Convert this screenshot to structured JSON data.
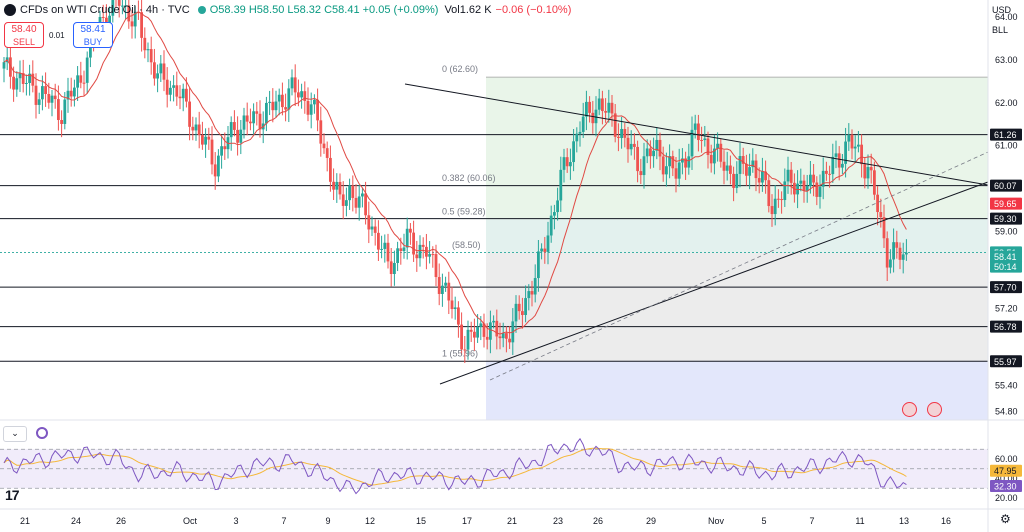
{
  "header": {
    "title": "CFDs on WTI Crude Oil · 4h · TVC",
    "ohlc": "O58.39 H58.50 L58.32 C58.41 +0.05 (+0.09%)",
    "volume": "Vol1.62 K",
    "vol_change": "−0.06 (−0.10%)"
  },
  "trade": {
    "sell_price": "58.40",
    "sell_label": "SELL",
    "buy_price": "58.41",
    "buy_label": "BUY",
    "spread": "0.01"
  },
  "currency": "USD",
  "unit": "BLL",
  "colors": {
    "up": "#26a69a",
    "down": "#ef5350",
    "ma": "#e04a44",
    "rsi": "#7e57c2",
    "rsi_ma": "#f5b83a"
  },
  "fib_labels": [
    {
      "text": "0 (62.60)",
      "price": 62.6
    },
    {
      "text": "0.382 (60.06)",
      "price": 60.06
    },
    {
      "text": "0.5 (59.28)",
      "price": 59.28
    },
    {
      "text": "(58.50)",
      "price": 58.5
    },
    {
      "text": "1 (55.96)",
      "price": 55.96
    }
  ],
  "price_axis": [
    "64.00",
    "63.00",
    "62.00",
    "61.00",
    "59.00",
    "57.20",
    "56.80",
    "55.40",
    "54.80"
  ],
  "price_axis_values": [
    64.0,
    63.0,
    62.0,
    61.0,
    59.0,
    57.2,
    56.8,
    55.4,
    54.8
  ],
  "level_badges": [
    {
      "text": "61.26",
      "price": 61.26,
      "style": "dark"
    },
    {
      "text": "60.07",
      "price": 60.07,
      "style": "dark"
    },
    {
      "text": "59.65",
      "price": 59.65,
      "style": "red"
    },
    {
      "text": "59.30",
      "price": 59.3,
      "style": "dark"
    },
    {
      "text": "58.51",
      "price": 58.51,
      "style": "green"
    },
    {
      "text": "58.41",
      "price": 58.41,
      "style": "green"
    },
    {
      "text": "50:14",
      "price": 58.18,
      "style": "green"
    },
    {
      "text": "57.70",
      "price": 57.7,
      "style": "dark"
    },
    {
      "text": "56.78",
      "price": 56.78,
      "style": "dark"
    },
    {
      "text": "55.97",
      "price": 55.97,
      "style": "dark"
    }
  ],
  "rsi_axis": [
    "60.00",
    "40.00",
    "20.00"
  ],
  "rsi_badges": [
    {
      "text": "47.95",
      "value": 47.95,
      "style": "yellow"
    },
    {
      "text": "32.30",
      "value": 32.3,
      "style": "purple"
    }
  ],
  "time_axis": [
    "21",
    "24",
    "26",
    "Oct",
    "3",
    "7",
    "9",
    "12",
    "15",
    "17",
    "21",
    "23",
    "26",
    "29",
    "Nov",
    "5",
    "7",
    "11",
    "13",
    "16"
  ],
  "chart_data": {
    "type": "candlestick",
    "timeframe": "4h",
    "y_range": [
      54.6,
      64.4
    ],
    "levels": [
      61.26,
      60.07,
      59.3,
      57.7,
      56.78,
      55.97
    ],
    "close_path": [
      {
        "x": 0,
        "y": 62.8
      },
      {
        "x": 4,
        "y": 62.2
      },
      {
        "x": 6,
        "y": 61.8
      },
      {
        "x": 8,
        "y": 62.6
      },
      {
        "x": 10,
        "y": 63.9
      },
      {
        "x": 12,
        "y": 64.4
      },
      {
        "x": 14,
        "y": 63.8
      },
      {
        "x": 16,
        "y": 62.6
      },
      {
        "x": 18,
        "y": 62.3
      },
      {
        "x": 20,
        "y": 61.4
      },
      {
        "x": 22,
        "y": 60.6
      },
      {
        "x": 24,
        "y": 61.4
      },
      {
        "x": 26,
        "y": 61.6
      },
      {
        "x": 28,
        "y": 61.9
      },
      {
        "x": 30,
        "y": 62.3
      },
      {
        "x": 32,
        "y": 62.0
      },
      {
        "x": 34,
        "y": 60.4
      },
      {
        "x": 35,
        "y": 59.6
      },
      {
        "x": 36,
        "y": 60.0
      },
      {
        "x": 38,
        "y": 59.3
      },
      {
        "x": 40,
        "y": 58.2
      },
      {
        "x": 42,
        "y": 58.8
      },
      {
        "x": 44,
        "y": 58.5
      },
      {
        "x": 46,
        "y": 57.6
      },
      {
        "x": 48,
        "y": 56.4
      },
      {
        "x": 50,
        "y": 56.8
      },
      {
        "x": 52,
        "y": 56.5
      },
      {
        "x": 54,
        "y": 57.2
      },
      {
        "x": 56,
        "y": 58.4
      },
      {
        "x": 58,
        "y": 60.2
      },
      {
        "x": 60,
        "y": 61.5
      },
      {
        "x": 62,
        "y": 62.0
      },
      {
        "x": 64,
        "y": 61.4
      },
      {
        "x": 66,
        "y": 60.6
      },
      {
        "x": 68,
        "y": 60.9
      },
      {
        "x": 70,
        "y": 60.3
      },
      {
        "x": 72,
        "y": 61.3
      },
      {
        "x": 74,
        "y": 60.8
      },
      {
        "x": 76,
        "y": 60.3
      },
      {
        "x": 78,
        "y": 60.6
      },
      {
        "x": 80,
        "y": 59.6
      },
      {
        "x": 82,
        "y": 60.2
      },
      {
        "x": 84,
        "y": 60.0
      },
      {
        "x": 86,
        "y": 60.4
      },
      {
        "x": 88,
        "y": 61.1
      },
      {
        "x": 90,
        "y": 60.5
      },
      {
        "x": 92,
        "y": 58.5
      },
      {
        "x": 94,
        "y": 58.41
      }
    ],
    "rsi_path": [
      {
        "x": 0,
        "y": 52
      },
      {
        "x": 4,
        "y": 60
      },
      {
        "x": 8,
        "y": 66
      },
      {
        "x": 12,
        "y": 60
      },
      {
        "x": 14,
        "y": 44
      },
      {
        "x": 18,
        "y": 48
      },
      {
        "x": 22,
        "y": 36
      },
      {
        "x": 26,
        "y": 54
      },
      {
        "x": 30,
        "y": 58
      },
      {
        "x": 34,
        "y": 40
      },
      {
        "x": 36,
        "y": 28
      },
      {
        "x": 40,
        "y": 44
      },
      {
        "x": 44,
        "y": 42
      },
      {
        "x": 48,
        "y": 36
      },
      {
        "x": 52,
        "y": 46
      },
      {
        "x": 56,
        "y": 60
      },
      {
        "x": 58,
        "y": 74
      },
      {
        "x": 60,
        "y": 71
      },
      {
        "x": 62,
        "y": 70
      },
      {
        "x": 64,
        "y": 55
      },
      {
        "x": 66,
        "y": 50
      },
      {
        "x": 70,
        "y": 58
      },
      {
        "x": 74,
        "y": 54
      },
      {
        "x": 78,
        "y": 48
      },
      {
        "x": 80,
        "y": 44
      },
      {
        "x": 84,
        "y": 52
      },
      {
        "x": 88,
        "y": 62
      },
      {
        "x": 90,
        "y": 55
      },
      {
        "x": 92,
        "y": 34
      },
      {
        "x": 94,
        "y": 32.3
      }
    ]
  }
}
